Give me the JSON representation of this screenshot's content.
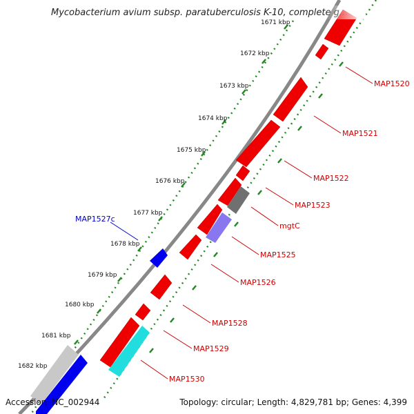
{
  "title": "Mycobacterium avium subsp. paratuberculosis K-10, complete g...",
  "footer": {
    "accession": "Accession: NC_002944",
    "summary": "Topology: circular; Length: 4,829,781 bp; Genes: 4,399"
  },
  "colors": {
    "forward_gene": "#ee0000",
    "reverse_gene": "#0000ee",
    "trna": "#707070",
    "rrna": "#8877ee",
    "other": "#22dddd",
    "pseudo": "#c8c8c8",
    "backbone": "#888888",
    "tick": "#228822",
    "label_forward": "#cc0000",
    "label_reverse": "#0000cc"
  },
  "ticks": [
    "1671 kbp",
    "1672 kbp",
    "1673 kbp",
    "1674 kbp",
    "1675 kbp",
    "1676 kbp",
    "1677 kbp",
    "1678 kbp",
    "1679 kbp",
    "1680 kbp",
    "1681 kbp",
    "1682 kbp"
  ],
  "gene_labels": [
    {
      "name": "MAP1520",
      "strand": "forward"
    },
    {
      "name": "MAP1521",
      "strand": "forward"
    },
    {
      "name": "MAP1522",
      "strand": "forward"
    },
    {
      "name": "MAP1523",
      "strand": "forward"
    },
    {
      "name": "mgtC",
      "strand": "forward"
    },
    {
      "name": "MAP1525",
      "strand": "forward"
    },
    {
      "name": "MAP1526",
      "strand": "forward"
    },
    {
      "name": "MAP1528",
      "strand": "forward"
    },
    {
      "name": "MAP1529",
      "strand": "forward"
    },
    {
      "name": "MAP1530",
      "strand": "forward"
    },
    {
      "name": "MAP1527c",
      "strand": "reverse"
    }
  ]
}
